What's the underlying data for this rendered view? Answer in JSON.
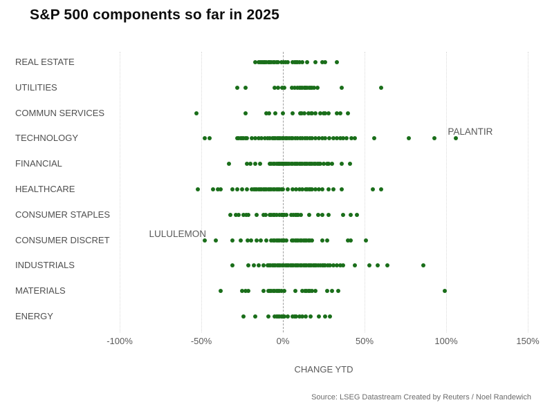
{
  "header": {
    "title": "S&P 500 components so far in 2025"
  },
  "footer": {
    "source": "Source: LSEG Datastream  Created by Reuters / Noel Randewich"
  },
  "chart_data": {
    "type": "scatter",
    "title": "S&P 500 components so far in 2025",
    "xlabel": "CHANGE YTD",
    "xlim": [
      -100,
      150
    ],
    "x_tick_values": [
      -100,
      -50,
      0,
      50,
      100,
      150
    ],
    "x_tick_labels": [
      "-100%",
      "-50%",
      "0%",
      "50%",
      "100%",
      "150%"
    ],
    "zero_line_value": 0,
    "grid": "vertical-dotted",
    "legend": "none",
    "point_color": "#1a6e1a",
    "categories": [
      "REAL ESTATE",
      "UTILITIES",
      "COMMUN SERVICES",
      "TECHNOLOGY",
      "FINANCIAL",
      "HEALTHCARE",
      "CONSUMER STAPLES",
      "CONSUMER DISCRET",
      "INDUSTRIALS",
      "MATERIALS",
      "ENERGY"
    ],
    "series": [
      {
        "name": "REAL ESTATE",
        "values": [
          -17,
          -15,
          -14,
          -13,
          -12.5,
          -11.5,
          -11,
          -10,
          -9,
          -8.5,
          -8,
          -7,
          -6,
          -5,
          -4,
          -3,
          -1,
          0.5,
          1.5,
          3,
          6,
          7,
          8,
          9,
          10,
          12,
          15,
          20,
          24,
          26,
          33
        ]
      },
      {
        "name": "UTILITIES",
        "values": [
          -28,
          -23,
          -5,
          -3,
          -0.5,
          1,
          5.5,
          7,
          9,
          10,
          11,
          12,
          13,
          13.5,
          14,
          15,
          16,
          17,
          18,
          19,
          21,
          36,
          60
        ]
      },
      {
        "name": "COMMUN SERVICES",
        "values": [
          -53,
          -23,
          -10,
          -8.5,
          -4.5,
          0,
          6,
          10.5,
          11.5,
          13,
          15.5,
          17.5,
          18,
          20,
          23,
          25,
          26,
          28,
          33,
          35,
          40
        ]
      },
      {
        "name": "TECHNOLOGY",
        "values": [
          -48,
          -45,
          -28,
          -27,
          -26,
          -25,
          -24,
          -23,
          -22,
          -19,
          -17,
          -15,
          -13,
          -11,
          -9.5,
          -8,
          -6.5,
          -5.5,
          -4.5,
          -3.5,
          -2.5,
          -1.5,
          -0.5,
          0.5,
          1.5,
          2.5,
          4,
          5,
          6,
          7.5,
          9,
          10.5,
          12,
          13.5,
          15,
          16.5,
          18,
          20,
          22,
          24,
          26,
          28.5,
          31,
          33,
          35,
          37,
          39,
          42,
          44,
          56,
          77,
          93,
          106
        ]
      },
      {
        "name": "FINANCIAL",
        "values": [
          -33,
          -22,
          -20,
          -17,
          -14,
          -8,
          -7,
          -6,
          -5,
          -4,
          -3,
          -2.5,
          -2,
          -1.5,
          -1,
          -0.5,
          0,
          0.5,
          1,
          1.5,
          2,
          3,
          4,
          5,
          6,
          7,
          8,
          9,
          10,
          11,
          12,
          13,
          14,
          15,
          16,
          17,
          18,
          19,
          20,
          21,
          22,
          23,
          25,
          27,
          28,
          30,
          36,
          41
        ]
      },
      {
        "name": "HEALTHCARE",
        "values": [
          -52,
          -43,
          -40,
          -38,
          -31,
          -28,
          -25,
          -22,
          -19,
          -18,
          -17,
          -16,
          -15,
          -14,
          -13,
          -12,
          -11,
          -10,
          -9,
          -8,
          -7,
          -6,
          -5,
          -4,
          -3,
          -2,
          -1,
          0,
          3,
          6,
          8,
          10,
          12,
          14,
          15,
          16,
          17,
          18,
          20,
          22,
          24,
          28,
          31,
          36,
          55,
          60
        ]
      },
      {
        "name": "CONSUMER STAPLES",
        "values": [
          -32,
          -29,
          -27,
          -24,
          -22.5,
          -21,
          -16,
          -12,
          -10.5,
          -8,
          -7,
          -6,
          -5,
          -4,
          -2,
          -1,
          -0.5,
          0,
          0.5,
          1,
          2,
          5,
          6.5,
          7.5,
          8.5,
          9.5,
          11,
          16,
          21.5,
          24,
          28,
          37,
          41.5,
          45.5
        ]
      },
      {
        "name": "CONSUMER DISCRET",
        "values": [
          -48,
          -41,
          -31,
          -26,
          -21.5,
          -19.5,
          -16,
          -13.5,
          -10,
          -7,
          -6,
          -5,
          -4,
          -3,
          -2,
          -1,
          0,
          1,
          2,
          5.5,
          6.5,
          7.5,
          8.5,
          9.5,
          10.5,
          11.5,
          12.5,
          13.5,
          14.5,
          15.5,
          16.5,
          18,
          24,
          27,
          40,
          41.5,
          51
        ]
      },
      {
        "name": "INDUSTRIALS",
        "values": [
          -31,
          -21,
          -18,
          -15,
          -12,
          -9.5,
          -8.5,
          -7.5,
          -6.5,
          -5.5,
          -4.5,
          -3.5,
          -2.5,
          -1.5,
          -0.5,
          0.5,
          1.5,
          2.5,
          3.5,
          4.5,
          5.5,
          6.5,
          7.5,
          8.5,
          9.5,
          10.5,
          11.5,
          12.5,
          13.5,
          14.5,
          15.5,
          16.5,
          17.5,
          18.5,
          19.5,
          20.5,
          21.5,
          23,
          24,
          25,
          26,
          27.5,
          29,
          31,
          33,
          35,
          37,
          44,
          53,
          58,
          64,
          86
        ]
      },
      {
        "name": "MATERIALS",
        "values": [
          -38,
          -25,
          -23,
          -21,
          -12,
          -9,
          -8,
          -7,
          -6,
          -5,
          -4,
          -3,
          -2,
          -1,
          1,
          7.5,
          12,
          13.5,
          14.5,
          15.5,
          16.5,
          18,
          20,
          27,
          30,
          34,
          99
        ]
      },
      {
        "name": "ENERGY",
        "values": [
          -24,
          -17,
          -9,
          -5,
          -4,
          -3,
          -2,
          -1,
          -0.5,
          0.5,
          1,
          3,
          6,
          7,
          8,
          10,
          12,
          14,
          17,
          22,
          26,
          29
        ]
      }
    ],
    "annotations": [
      {
        "text": "PALANTIR",
        "x_pct": 101,
        "category_index": 3,
        "position": "above"
      },
      {
        "text": "LULULEMON",
        "x_pct": -82,
        "category_index": 7,
        "position": "above"
      }
    ]
  }
}
